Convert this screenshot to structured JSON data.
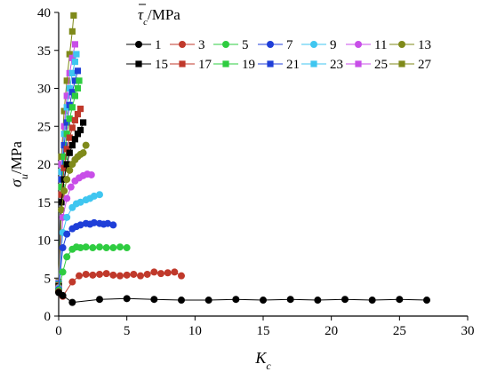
{
  "chart_data": {
    "type": "scatter",
    "xlabel": "K",
    "xlabel_sub": "c",
    "ylabel": "σ",
    "ylabel_sub": "u",
    "ylabel_unit": "/MPa",
    "legend_title": "τ",
    "legend_title_sub": "c",
    "legend_title_unit": "/MPa",
    "xlim": [
      0,
      30
    ],
    "ylim": [
      0,
      40
    ],
    "xticks": [
      "0",
      "5",
      "10",
      "15",
      "20",
      "25",
      "30"
    ],
    "yticks": [
      "0",
      "5",
      "10",
      "15",
      "20",
      "25",
      "30",
      "35",
      "40"
    ],
    "legend_placement": "top-right",
    "series": [
      {
        "name": "1",
        "color": "#000000",
        "marker": "circle",
        "x": [
          0,
          0.3,
          1,
          3,
          5,
          7,
          9,
          11,
          13,
          15,
          17,
          19,
          21,
          23,
          25,
          27
        ],
        "y": [
          3.1,
          2.7,
          1.8,
          2.2,
          2.3,
          2.2,
          2.1,
          2.1,
          2.2,
          2.1,
          2.2,
          2.1,
          2.2,
          2.1,
          2.2,
          2.1
        ]
      },
      {
        "name": "3",
        "color": "#c0392b",
        "marker": "circle",
        "x": [
          0,
          0.3,
          1,
          1.5,
          2,
          2.5,
          3,
          3.5,
          4,
          4.5,
          5,
          5.5,
          6,
          6.5,
          7,
          7.5,
          8,
          8.5,
          9
        ],
        "y": [
          3.2,
          2.6,
          4.5,
          5.3,
          5.5,
          5.4,
          5.5,
          5.6,
          5.4,
          5.3,
          5.4,
          5.5,
          5.3,
          5.5,
          5.8,
          5.6,
          5.7,
          5.8,
          5.3
        ]
      },
      {
        "name": "5",
        "color": "#2ecc40",
        "marker": "circle",
        "x": [
          0,
          0.3,
          0.6,
          1,
          1.3,
          1.6,
          2,
          2.5,
          3,
          3.5,
          4,
          4.5,
          5
        ],
        "y": [
          3.4,
          5.8,
          7.8,
          8.8,
          9.1,
          9.0,
          9.1,
          9.0,
          9.1,
          9.0,
          9.0,
          9.1,
          9.0
        ]
      },
      {
        "name": "7",
        "color": "#1f3fd8",
        "marker": "circle",
        "x": [
          0,
          0.3,
          0.6,
          1,
          1.3,
          1.6,
          2,
          2.3,
          2.6,
          3,
          3.3,
          3.6,
          4
        ],
        "y": [
          3.5,
          9.0,
          10.8,
          11.5,
          11.8,
          12.0,
          12.2,
          12.1,
          12.3,
          12.2,
          12.1,
          12.2,
          12.0
        ]
      },
      {
        "name": "9",
        "color": "#3fc6f0",
        "marker": "circle",
        "x": [
          0,
          0.3,
          0.6,
          1,
          1.3,
          1.6,
          2,
          2.3,
          2.6,
          3
        ],
        "y": [
          3.6,
          11.0,
          13.0,
          14.3,
          14.8,
          15.0,
          15.3,
          15.5,
          15.8,
          16.0
        ]
      },
      {
        "name": "11",
        "color": "#c84ee8",
        "marker": "circle",
        "x": [
          0,
          0.3,
          0.6,
          0.9,
          1.2,
          1.5,
          1.8,
          2.1,
          2.4
        ],
        "y": [
          3.7,
          13.0,
          15.5,
          17.0,
          17.8,
          18.2,
          18.5,
          18.7,
          18.6
        ]
      },
      {
        "name": "13",
        "color": "#7f8a1a",
        "marker": "circle",
        "x": [
          0,
          0.2,
          0.4,
          0.6,
          0.8,
          1.0,
          1.2,
          1.4,
          1.6,
          1.8,
          2.0
        ],
        "y": [
          3.8,
          14.0,
          16.5,
          18.0,
          19.2,
          20.0,
          20.6,
          21.0,
          21.3,
          21.5,
          22.5
        ]
      },
      {
        "name": "15",
        "color": "#000000",
        "marker": "square",
        "x": [
          0,
          0.2,
          0.4,
          0.6,
          0.8,
          1.0,
          1.2,
          1.4,
          1.6,
          1.8
        ],
        "y": [
          3.9,
          15.0,
          18.0,
          20.0,
          21.5,
          22.5,
          23.3,
          24.0,
          24.5,
          25.5
        ]
      },
      {
        "name": "17",
        "color": "#c0392b",
        "marker": "square",
        "x": [
          0,
          0.2,
          0.4,
          0.6,
          0.8,
          1.0,
          1.2,
          1.4,
          1.6
        ],
        "y": [
          4.0,
          16.0,
          19.5,
          22.0,
          23.5,
          24.8,
          25.8,
          26.6,
          27.3
        ]
      },
      {
        "name": "19",
        "color": "#2ecc40",
        "marker": "square",
        "x": [
          0,
          0.2,
          0.4,
          0.6,
          0.8,
          1.0,
          1.2,
          1.4,
          1.5
        ],
        "y": [
          4.1,
          17.0,
          21.0,
          24.0,
          26.0,
          27.5,
          29.0,
          30.0,
          31.0
        ]
      },
      {
        "name": "21",
        "color": "#1f3fd8",
        "marker": "square",
        "x": [
          0,
          0.2,
          0.4,
          0.6,
          0.8,
          1.0,
          1.2,
          1.4
        ],
        "y": [
          4.2,
          18.0,
          22.5,
          25.5,
          27.8,
          29.5,
          31.0,
          32.3
        ]
      },
      {
        "name": "23",
        "color": "#3fc6f0",
        "marker": "square",
        "x": [
          0,
          0.2,
          0.4,
          0.6,
          0.8,
          1.0,
          1.2,
          1.3
        ],
        "y": [
          4.3,
          19.0,
          24.0,
          27.5,
          30.0,
          32.0,
          33.5,
          34.5
        ]
      },
      {
        "name": "25",
        "color": "#c84ee8",
        "marker": "square",
        "x": [
          0,
          0.2,
          0.4,
          0.6,
          0.8,
          1.0,
          1.2
        ],
        "y": [
          4.4,
          20.0,
          25.0,
          29.0,
          32.0,
          34.0,
          35.8
        ]
      },
      {
        "name": "27",
        "color": "#7f8a1a",
        "marker": "square",
        "x": [
          0,
          0.2,
          0.4,
          0.6,
          0.8,
          1.0,
          1.1
        ],
        "y": [
          4.5,
          21.0,
          27.0,
          31.0,
          34.5,
          37.5,
          39.6
        ]
      }
    ]
  }
}
